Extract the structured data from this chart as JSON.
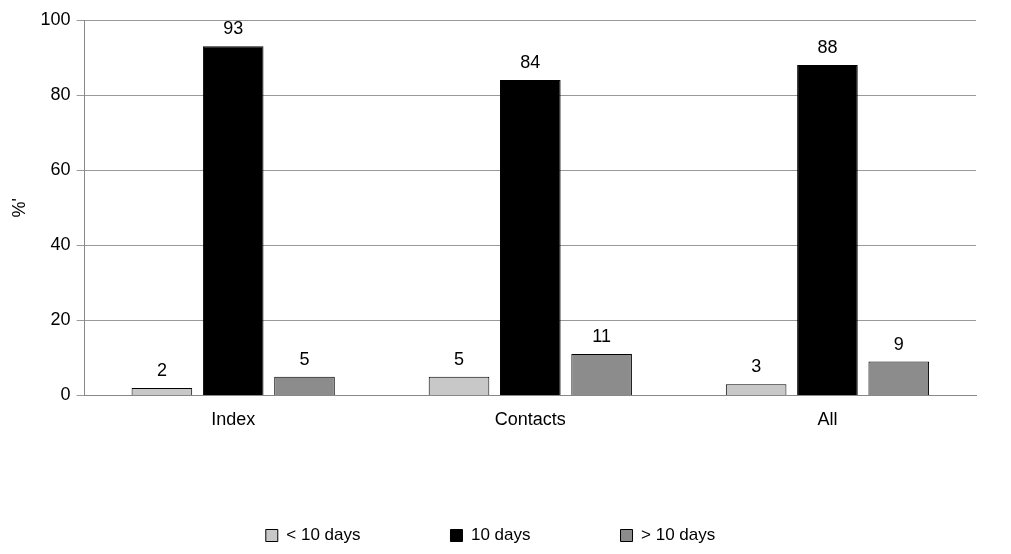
{
  "chart_data": {
    "type": "bar",
    "ylabel": "%'",
    "categories": [
      "Index",
      "Contacts",
      "All"
    ],
    "series": [
      {
        "name": "< 10 days",
        "color": "#c8c8c8",
        "values": [
          2,
          5,
          3
        ]
      },
      {
        "name": "10 days",
        "color": "#000000",
        "values": [
          93,
          84,
          88
        ]
      },
      {
        "name": "> 10 days",
        "color": "#8c8c8c",
        "values": [
          5,
          11,
          9
        ]
      }
    ],
    "ylim": [
      0,
      100
    ],
    "yticks": [
      0,
      20,
      40,
      60,
      80,
      100
    ],
    "grid": "y",
    "legend": "bottom",
    "data_labels": true
  }
}
